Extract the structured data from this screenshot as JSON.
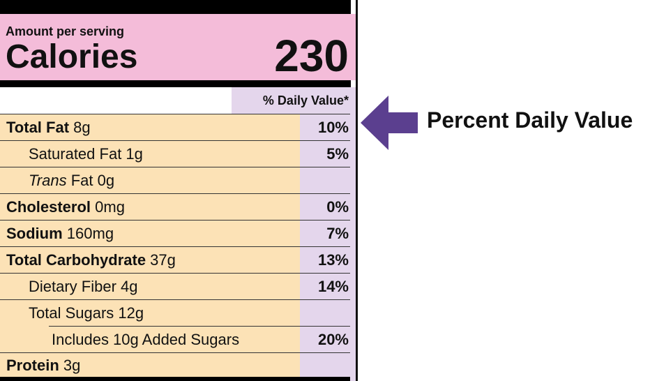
{
  "header": {
    "amount_per_serving": "Amount per serving",
    "calories_label": "Calories",
    "calories_value": "230"
  },
  "daily_value_header": "% Daily Value*",
  "rows": [
    {
      "name_bold": "Total Fat",
      "name_italic": "",
      "name_rest": " 8g",
      "dv": "10%"
    },
    {
      "name_bold": "",
      "name_italic": "",
      "name_rest": "Saturated Fat 1g",
      "dv": "5%"
    },
    {
      "name_bold": "",
      "name_italic": "Trans",
      "name_rest": " Fat 0g",
      "dv": ""
    },
    {
      "name_bold": "Cholesterol",
      "name_italic": "",
      "name_rest": " 0mg",
      "dv": "0%"
    },
    {
      "name_bold": "Sodium",
      "name_italic": "",
      "name_rest": " 160mg",
      "dv": "7%"
    },
    {
      "name_bold": "Total Carbohydrate",
      "name_italic": "",
      "name_rest": " 37g",
      "dv": "13%"
    },
    {
      "name_bold": "",
      "name_italic": "",
      "name_rest": "Dietary Fiber 4g",
      "dv": "14%"
    },
    {
      "name_bold": "",
      "name_italic": "",
      "name_rest": "Total Sugars 12g",
      "dv": ""
    },
    {
      "name_bold": "",
      "name_italic": "",
      "name_rest": "Includes 10g Added Sugars",
      "dv": "20%"
    },
    {
      "name_bold": "Protein",
      "name_italic": "",
      "name_rest": " 3g",
      "dv": ""
    }
  ],
  "callout": {
    "text": "Percent Daily Value",
    "arrow_icon": "left-arrow-icon"
  },
  "colors": {
    "calories_bg": "#f4bcd9",
    "nutrient_bg": "#fce2b6",
    "daily_value_bg": "#e4d6ec",
    "arrow": "#5b3f8f"
  }
}
